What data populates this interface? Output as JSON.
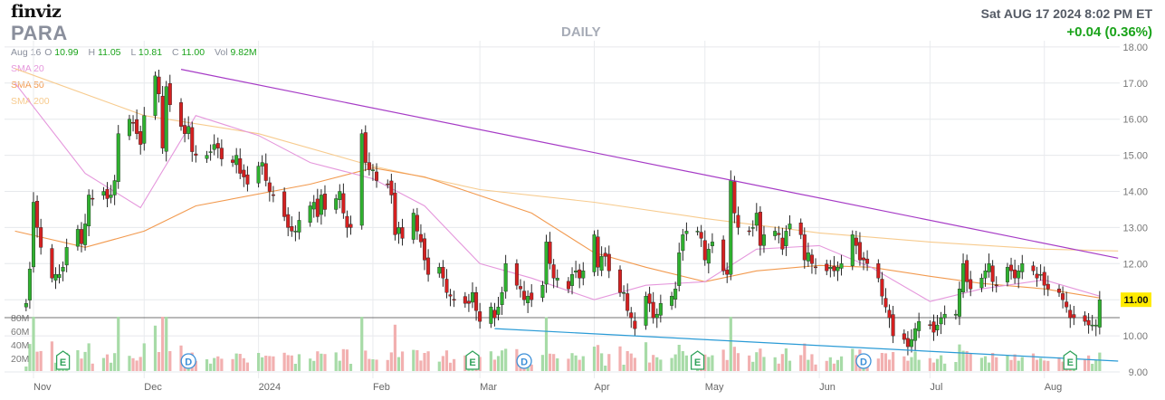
{
  "header": {
    "logo": "finviz",
    "ticker": "PARA",
    "period": "DAILY",
    "datetime": "Sat AUG 17 2024 8:02 PM ET",
    "change": "+0.04 (0.36%)"
  },
  "ohlc": {
    "date": "Aug 16",
    "open_label": "O",
    "open": "10.99",
    "high_label": "H",
    "high": "11.05",
    "low_label": "L",
    "low": "10.81",
    "close_label": "C",
    "close": "11.00",
    "vol_label": "Vol",
    "vol": "9.82M"
  },
  "legend": {
    "sma20": "SMA 20",
    "sma50": "SMA 50",
    "sma200": "SMA 200"
  },
  "colors": {
    "up": "#2fb12f",
    "down": "#d42020",
    "sma20": "#e597dc",
    "sma50": "#f29a4f",
    "sma200": "#f7cb8e",
    "trend_top": "#a63bc6",
    "trend_bottom": "#2a9bd6",
    "vol_up": "#a7dba7",
    "vol_down": "#f2b0b0",
    "last_price_bg": "#ffeb00"
  },
  "chart_data": {
    "type": "candlestick",
    "price_axis": {
      "min": 9.0,
      "max": 18.0,
      "ticks": [
        "18.00",
        "17.00",
        "16.00",
        "15.00",
        "14.00",
        "13.00",
        "12.00",
        "11.00",
        "10.00",
        "9.00"
      ]
    },
    "volume_axis": {
      "ticks": [
        "80M",
        "60M",
        "40M",
        "20M"
      ]
    },
    "last_price_label": "11.00",
    "x_labels": [
      "Nov",
      "Dec",
      "2024",
      "Feb",
      "Mar",
      "Apr",
      "May",
      "Jun",
      "Jul",
      "Aug"
    ],
    "events": [
      {
        "type": "E",
        "date": "Nov 09"
      },
      {
        "type": "D",
        "date": "Dec 13"
      },
      {
        "type": "E",
        "date": "Feb 28"
      },
      {
        "type": "D",
        "date": "Mar 13"
      },
      {
        "type": "E",
        "date": "Apr 29"
      },
      {
        "type": "D",
        "date": "Jun 13"
      },
      {
        "type": "E",
        "date": "Aug 08"
      }
    ],
    "trendlines": [
      {
        "name": "resistance",
        "from": {
          "date": "Dec 11",
          "price": 17.38
        },
        "to": {
          "date": "Aug 21",
          "price": 12.15
        }
      },
      {
        "name": "support",
        "from": {
          "date": "Mar 05",
          "price": 10.2
        },
        "to": {
          "date": "Aug 21",
          "price": 9.3
        }
      }
    ],
    "closes": [
      10.9,
      11.85,
      13.7,
      13.0,
      12.45,
      11.6,
      11.7,
      11.7,
      11.9,
      12.45,
      12.95,
      12.55,
      13.1,
      13.9,
      13.8,
      14.0,
      13.8,
      13.9,
      14.3,
      15.6,
      16.0,
      15.9,
      15.6,
      15.3,
      16.1,
      17.2,
      16.7,
      15.2,
      16.9,
      16.4,
      15.8,
      15.6,
      15.8,
      15.1,
      15.0,
      15.0,
      15.1,
      15.3,
      15.2,
      14.9,
      14.8,
      15.0,
      14.5,
      14.4,
      14.2,
      14.7,
      14.8,
      14.3,
      14.0,
      13.9,
      13.3,
      13.0,
      12.9,
      12.9,
      13.2,
      13.6,
      13.7,
      13.3,
      13.9,
      13.5,
      13.8,
      14.0,
      13.4,
      13.0,
      13.0,
      15.6,
      14.8,
      14.6,
      14.6,
      14.3,
      14.2,
      13.9,
      12.8,
      13.0,
      12.7,
      13.4,
      12.9,
      12.6,
      12.1,
      11.7,
      11.9,
      11.6,
      11.2,
      11.1,
      11.0,
      10.9,
      10.9,
      11.2,
      10.7,
      10.4,
      10.8,
      10.5,
      10.8,
      11.2,
      12.0,
      11.4,
      11.3,
      11.0,
      11.1,
      11.0,
      11.4,
      12.6,
      12.0,
      11.6,
      11.6,
      11.3,
      11.7,
      11.8,
      11.6,
      11.8,
      12.8,
      11.9,
      12.2,
      12.2,
      11.8,
      11.2,
      11.2,
      10.7,
      10.5,
      10.2,
      11.1,
      10.9,
      10.5,
      10.6,
      10.9,
      11.1,
      11.3,
      12.3,
      12.8,
      12.9,
      12.9,
      12.7,
      12.1,
      12.4,
      12.6,
      11.8,
      11.7,
      14.3,
      13.4,
      13.0,
      12.9,
      13.0,
      13.4,
      12.5,
      12.8,
      12.9,
      12.8,
      12.4,
      12.9,
      13.1,
      12.8,
      12.1,
      12.3,
      12.0,
      11.9,
      11.8,
      11.9,
      11.8,
      11.9,
      12.0,
      12.8,
      12.5,
      12.1,
      12.1,
      12.0,
      11.6,
      11.1,
      10.8,
      10.5,
      10.0,
      9.9,
      9.7,
      9.9,
      10.2,
      10.4,
      10.3,
      10.1,
      10.3,
      10.5,
      10.6,
      10.6,
      11.3,
      12.0,
      11.5,
      11.3,
      11.6,
      11.8,
      12.0,
      11.5,
      11.4,
      11.9,
      11.8,
      11.6,
      11.8,
      12.0,
      11.8,
      11.6,
      11.7,
      11.4,
      11.3,
      11.2,
      11.0,
      10.8,
      10.5,
      10.5,
      10.4,
      10.3,
      10.3,
      10.3,
      11.0
    ],
    "sma20_path": [
      [
        "Oct 27",
        17.0
      ],
      [
        "Nov 15",
        14.5
      ],
      [
        "Nov 30",
        13.55
      ],
      [
        "Dec 15",
        16.1
      ],
      [
        "Jan 01",
        15.55
      ],
      [
        "Jan 15",
        14.8
      ],
      [
        "Feb 01",
        14.35
      ],
      [
        "Feb 15",
        13.6
      ],
      [
        "Mar 01",
        12.0
      ],
      [
        "Mar 15",
        11.6
      ],
      [
        "Apr 01",
        11.0
      ],
      [
        "Apr 15",
        11.4
      ],
      [
        "May 01",
        11.5
      ],
      [
        "May 15",
        12.4
      ],
      [
        "Jun 01",
        12.5
      ],
      [
        "Jun 15",
        11.9
      ],
      [
        "Jul 01",
        10.95
      ],
      [
        "Jul 15",
        11.3
      ],
      [
        "Aug 01",
        11.55
      ],
      [
        "Aug 16",
        11.1
      ]
    ],
    "sma50_path": [
      [
        "Oct 27",
        12.9
      ],
      [
        "Nov 15",
        12.45
      ],
      [
        "Dec 01",
        12.9
      ],
      [
        "Dec 15",
        13.6
      ],
      [
        "Jan 15",
        14.2
      ],
      [
        "Feb 01",
        14.65
      ],
      [
        "Feb 15",
        14.4
      ],
      [
        "Mar 15",
        13.4
      ],
      [
        "Apr 01",
        12.3
      ],
      [
        "Apr 15",
        11.9
      ],
      [
        "May 01",
        11.5
      ],
      [
        "May 15",
        11.8
      ],
      [
        "Jun 01",
        11.95
      ],
      [
        "Jun 15",
        11.9
      ],
      [
        "Jul 01",
        11.65
      ],
      [
        "Jul 15",
        11.45
      ],
      [
        "Aug 01",
        11.3
      ],
      [
        "Aug 16",
        11.05
      ]
    ],
    "sma200_path": [
      [
        "Oct 27",
        17.4
      ],
      [
        "Dec 01",
        16.1
      ],
      [
        "Jan 01",
        15.6
      ],
      [
        "Feb 01",
        14.7
      ],
      [
        "Mar 01",
        14.05
      ],
      [
        "Apr 01",
        13.7
      ],
      [
        "May 01",
        13.25
      ],
      [
        "Jun 01",
        12.85
      ],
      [
        "Jul 01",
        12.6
      ],
      [
        "Aug 01",
        12.4
      ],
      [
        "Aug 21",
        12.35
      ]
    ]
  }
}
